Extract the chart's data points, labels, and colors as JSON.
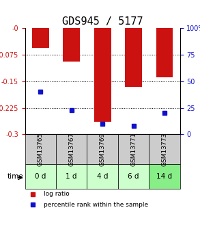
{
  "title": "GDS945 / 5177",
  "samples": [
    "GSM13765",
    "GSM13767",
    "GSM13769",
    "GSM13771",
    "GSM13773"
  ],
  "time_labels": [
    "0 d",
    "1 d",
    "4 d",
    "6 d",
    "14 d"
  ],
  "log_ratios": [
    -0.055,
    -0.095,
    -0.265,
    -0.165,
    -0.138
  ],
  "percentile_ranks": [
    40,
    23,
    10,
    8,
    20
  ],
  "left_ylim": [
    -0.3,
    0.0
  ],
  "right_ylim": [
    0,
    100
  ],
  "left_yticks": [
    0,
    -0.075,
    -0.15,
    -0.225,
    -0.3
  ],
  "right_yticks": [
    0,
    25,
    50,
    75,
    100
  ],
  "bar_color": "#cc1111",
  "percentile_color": "#1111cc",
  "bar_width": 0.55,
  "grid_color": "#555555",
  "sample_bg_color": "#cccccc",
  "time_bg_colors": [
    "#ccffcc",
    "#ccffcc",
    "#ccffcc",
    "#ccffcc",
    "#88ee88"
  ],
  "legend_log_ratio": "log ratio",
  "legend_percentile": "percentile rank within the sample",
  "time_arrow_label": "time",
  "title_fontsize": 11,
  "label_fontsize": 7.5,
  "tick_fontsize": 7,
  "sample_fontsize": 6.5,
  "time_fontsize": 7.5
}
